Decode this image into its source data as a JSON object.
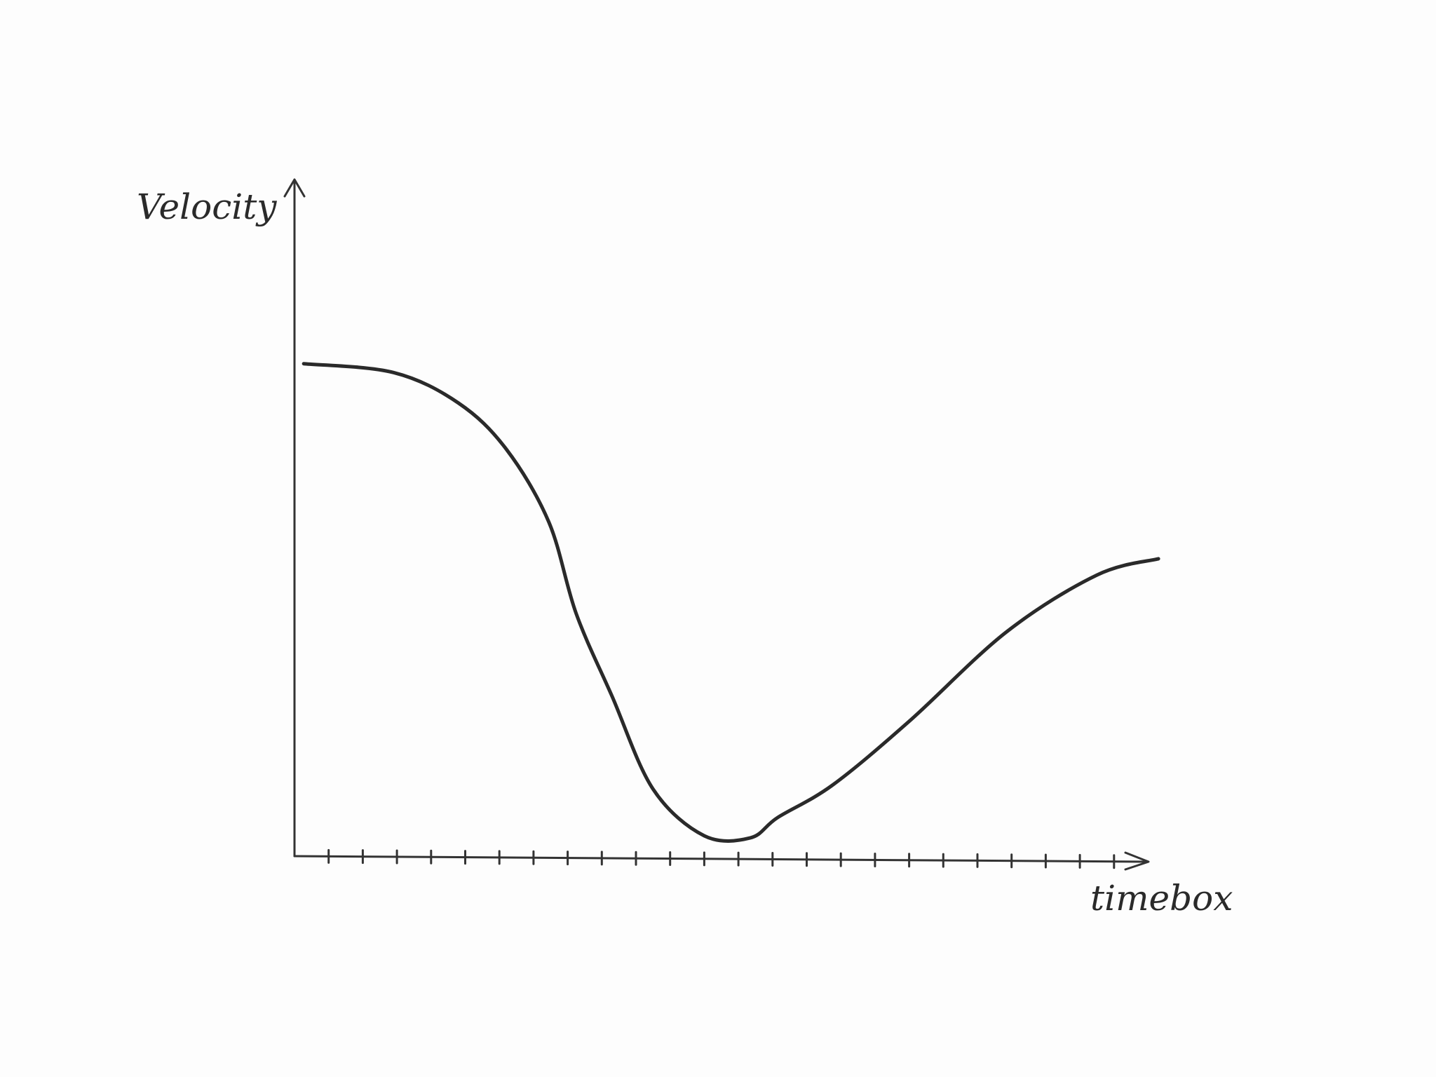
{
  "chart_data": {
    "type": "line",
    "y_label": "Velocity",
    "x_label": "timebox",
    "x": [
      0.27,
      2.9,
      4.8,
      6.2,
      7.45,
      8.25,
      9.3,
      10.5,
      12.0,
      13.35,
      14.15,
      15.76,
      18.0,
      20.85,
      23.5,
      25.3
    ],
    "values": [
      72.7,
      71.4,
      66.9,
      60.1,
      49.3,
      35.8,
      23.6,
      9.9,
      3.0,
      2.7,
      5.7,
      10.5,
      19.9,
      33.1,
      41.5,
      43.9
    ],
    "color": "#2a2a2a",
    "xlim": [
      0,
      26
    ],
    "ylim": [
      0,
      100
    ],
    "xticks": [
      1,
      2,
      3,
      4,
      5,
      6,
      7,
      8,
      9,
      10,
      11,
      12,
      13,
      14,
      15,
      16,
      17,
      18,
      19,
      20,
      21,
      22,
      23,
      24
    ]
  }
}
